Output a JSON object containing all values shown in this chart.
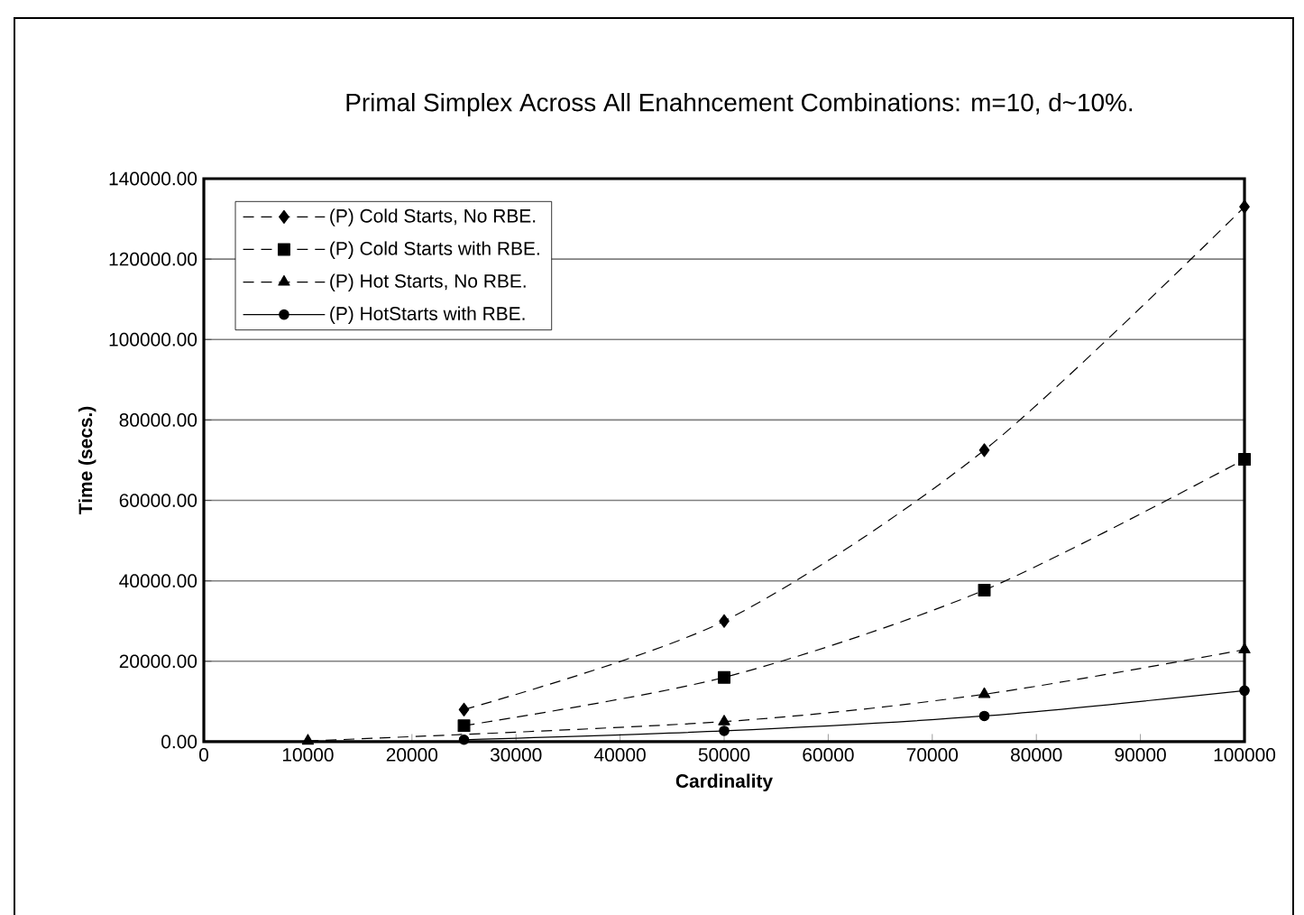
{
  "chart_data": {
    "type": "line",
    "title": "Primal Simplex Across All Enahncement Combinations: m=10, d~10%.",
    "xlabel": "Cardinality",
    "ylabel": "Time (secs.)",
    "x": [
      10000,
      25000,
      50000,
      75000,
      100000
    ],
    "series": [
      {
        "name": "(P) Cold Starts, No RBE.",
        "color": "#000000",
        "marker": "diamond",
        "line_style": "dashed",
        "values": [
          null,
          8000,
          30000,
          72500,
          133000
        ]
      },
      {
        "name": "(P) Cold Starts with RBE.",
        "color": "#000000",
        "marker": "square",
        "line_style": "dashed",
        "values": [
          null,
          4000,
          16000,
          37700,
          70200
        ]
      },
      {
        "name": "(P) Hot Starts, No RBE.",
        "color": "#000000",
        "marker": "triangle",
        "line_style": "dashed",
        "values": [
          200,
          null,
          5000,
          11800,
          22900
        ]
      },
      {
        "name": "(P) HotStarts with RBE.",
        "color": "#000000",
        "marker": "circle",
        "line_style": "solid",
        "values": [
          null,
          500,
          2700,
          6400,
          12700
        ]
      }
    ],
    "xlim": [
      0,
      100000
    ],
    "ylim": [
      0,
      140000
    ],
    "xticks": [
      0,
      10000,
      20000,
      30000,
      40000,
      50000,
      60000,
      70000,
      80000,
      90000,
      100000
    ],
    "yticks": [
      {
        "value": 0,
        "label": "0.00"
      },
      {
        "value": 20000,
        "label": "20000.00"
      },
      {
        "value": 40000,
        "label": "40000.00"
      },
      {
        "value": 60000,
        "label": "60000.00"
      },
      {
        "value": 80000,
        "label": "80000.00"
      },
      {
        "value": 100000,
        "label": "100000.00"
      },
      {
        "value": 120000,
        "label": "120000.00"
      },
      {
        "value": 140000,
        "label": "140000.00"
      }
    ],
    "grid": "y",
    "legend": "top left"
  }
}
